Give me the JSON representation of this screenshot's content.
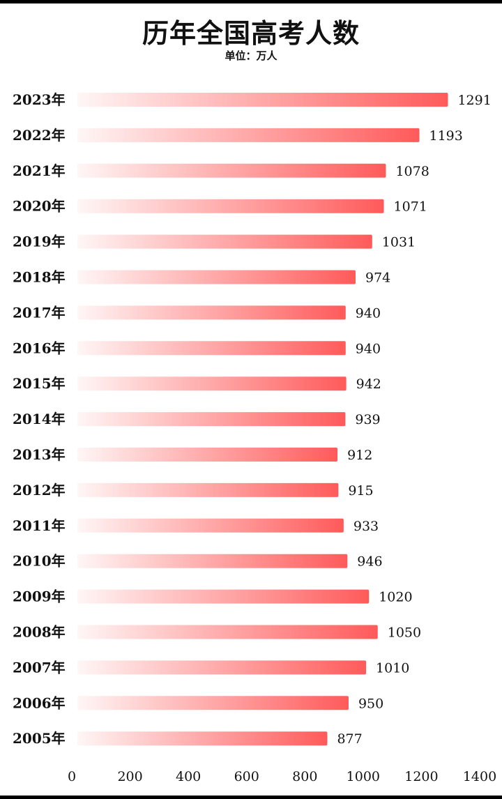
{
  "chart_data": {
    "type": "bar",
    "orientation": "horizontal",
    "title": "历年全国高考人数",
    "subtitle": "单位：万人",
    "categories": [
      "2023年",
      "2022年",
      "2021年",
      "2020年",
      "2019年",
      "2018年",
      "2017年",
      "2016年",
      "2015年",
      "2014年",
      "2013年",
      "2012年",
      "2011年",
      "2010年",
      "2009年",
      "2008年",
      "2007年",
      "2006年",
      "2005年"
    ],
    "values": [
      1291,
      1193,
      1078,
      1071,
      1031,
      974,
      940,
      940,
      942,
      939,
      912,
      915,
      933,
      946,
      1020,
      1050,
      1010,
      950,
      877
    ],
    "xlim": [
      0,
      1400
    ],
    "xticks": [
      "0",
      "200",
      "400",
      "600",
      "800",
      "1000",
      "1200",
      "1400"
    ],
    "grid": false,
    "legend": "none",
    "colors": {
      "bar_start": "#fff6f6",
      "bar_end": "#ff5a5a",
      "background": "#ffffff",
      "text": "#111111"
    }
  }
}
